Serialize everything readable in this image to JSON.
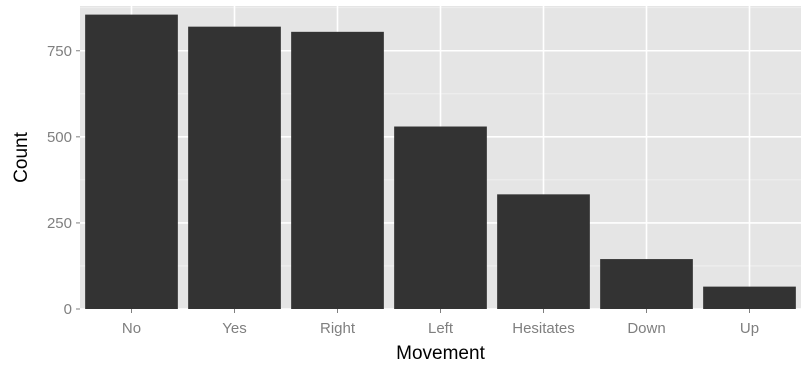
{
  "chart_data": {
    "type": "bar",
    "title": "",
    "xlabel": "Movement",
    "ylabel": "Count",
    "categories": [
      "No",
      "Yes",
      "Right",
      "Left",
      "Hesitates",
      "Down",
      "Up"
    ],
    "values": [
      855,
      820,
      805,
      530,
      333,
      145,
      65
    ],
    "ylim": [
      0,
      880
    ],
    "yticks": [
      0,
      250,
      500,
      750
    ],
    "ytick_labels": [
      "0",
      "250",
      "500",
      "750"
    ],
    "grid": true,
    "legend": "none",
    "colors": {
      "panel_background": "#e5e5e5",
      "grid_major": "#ffffff",
      "grid_minor": "#f2f2f2",
      "bar_fill": "#333333",
      "tick_label": "#7f7f7f",
      "axis_title": "#000000"
    }
  }
}
